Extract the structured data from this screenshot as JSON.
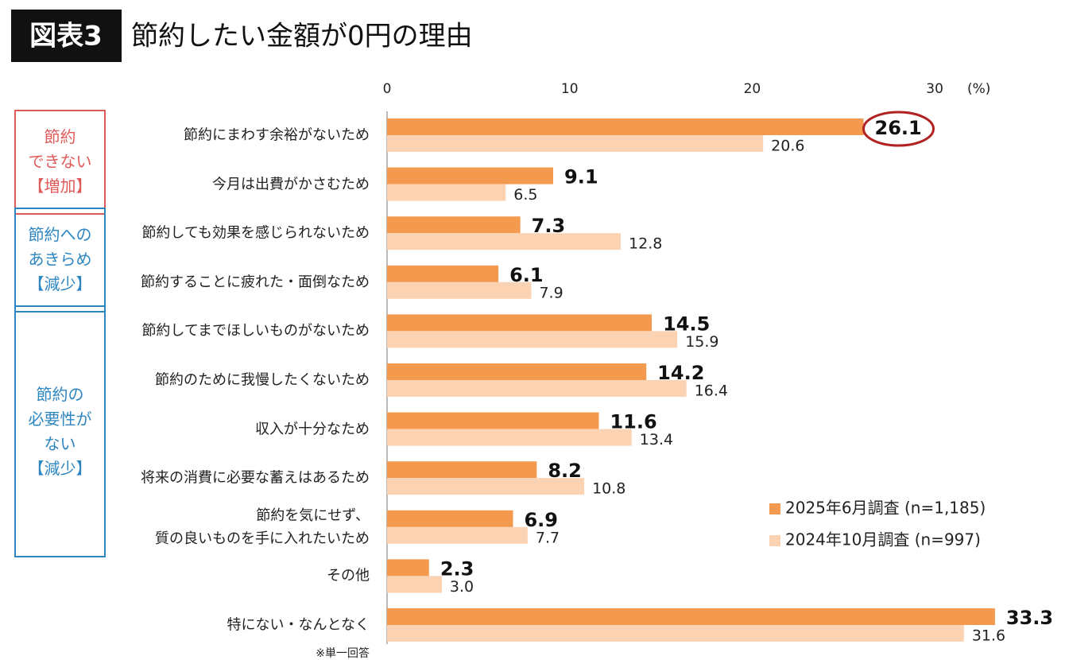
{
  "chart_data": {
    "type": "bar",
    "orientation": "horizontal",
    "badge": "図表3",
    "title": "節約したい金額が0円の理由",
    "categories": [
      "節約にまわす余裕がないため",
      "今月は出費がかさむため",
      "節約しても効果を感じられないため",
      "節約することに疲れた・面倒なため",
      "節約してまでほしいものがないため",
      "節約のために我慢したくないため",
      "収入が十分なため",
      "将来の消費に必要な蓄えはあるため",
      "節約を気にせず、\n質の良いものを手に入れたいため",
      "その他",
      "特にない・なんとなく"
    ],
    "series": [
      {
        "name": "2025年6月調査 (n=1,185)",
        "color": "#f39a4f",
        "values": [
          26.1,
          9.1,
          7.3,
          6.1,
          14.5,
          14.2,
          11.6,
          8.2,
          6.9,
          2.3,
          33.3
        ]
      },
      {
        "name": "2024年10月調査 (n=997)",
        "color": "#fbd3b3",
        "values": [
          20.6,
          6.5,
          12.8,
          7.9,
          15.9,
          16.4,
          13.4,
          10.8,
          7.7,
          3.0,
          31.6
        ],
        "value_labels": [
          "20.6",
          "6.5",
          "12.8",
          "7.9",
          "15.9",
          "16.4",
          "13.4",
          "10.8",
          "7.7",
          "3.0",
          "31.6"
        ]
      }
    ],
    "xlim": [
      0,
      33.5
    ],
    "xticks": [
      0,
      10,
      20,
      30
    ],
    "xlabel": "(%)",
    "groups": [
      {
        "label": "節約\nできない\n【増加】",
        "color": "#e05a5a"
      },
      {
        "label": "節約への\nあきらめ\n【減少】",
        "color": "#2e86c1"
      },
      {
        "label": "節約の\n必要性が\nない\n【減少】",
        "color": "#2e86c1"
      }
    ],
    "note": "※単一回答",
    "legend": "lower right"
  }
}
